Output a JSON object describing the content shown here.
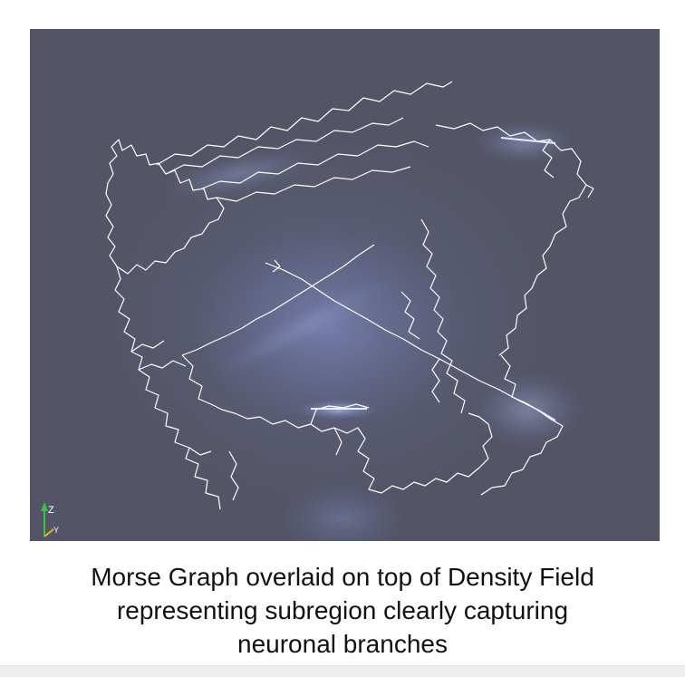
{
  "figure": {
    "axes_labels": {
      "z": "Z",
      "y": "Y",
      "x": "X"
    },
    "colors": {
      "background": "#535466",
      "density_glow": "#7f8fd8",
      "graph_lines": "#ffffff",
      "axis_z": "#39c24a",
      "axis_y": "#d8c02a"
    }
  },
  "caption": {
    "line1": "Morse Graph overlaid on top of Density Field",
    "line2": "representing subregion clearly capturing",
    "line3": "neuronal branches"
  }
}
